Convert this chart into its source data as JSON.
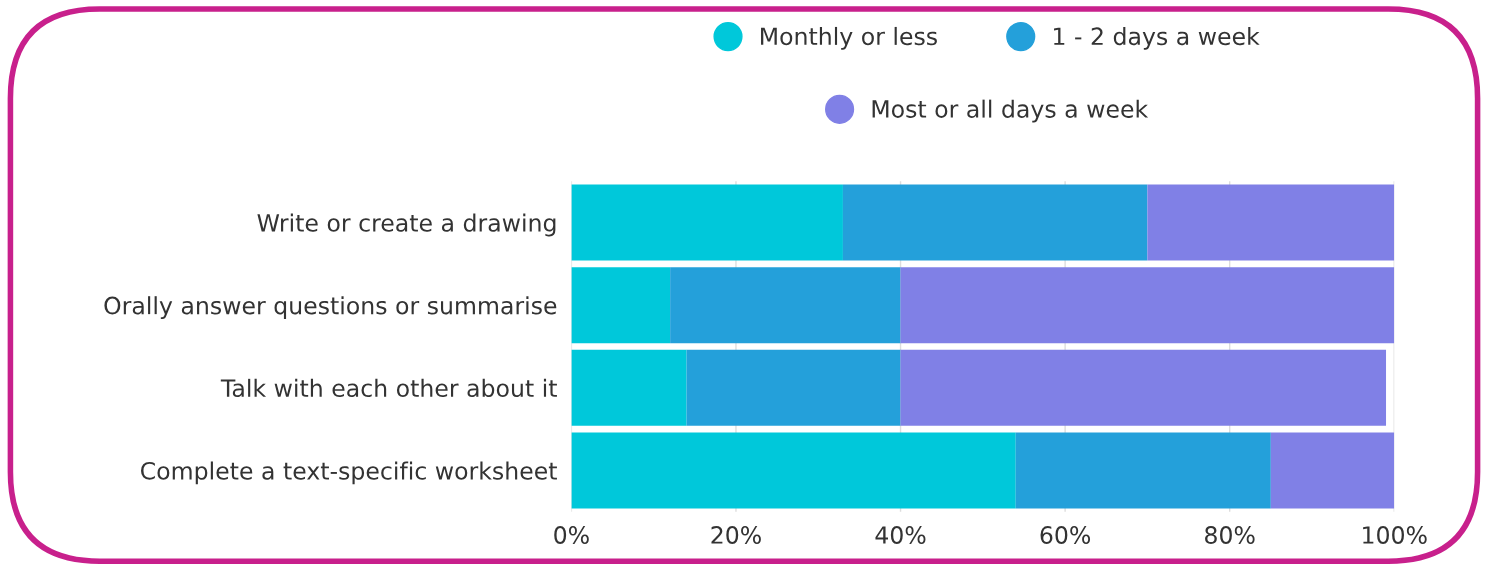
{
  "chart_data": {
    "type": "bar",
    "orientation": "horizontal",
    "stacked": true,
    "categories": [
      "Write or create a drawing",
      "Orally answer questions or summarise",
      "Talk with each other about it",
      "Complete a text-specific worksheet"
    ],
    "series": [
      {
        "name": "Monthly or less",
        "color": "#00c8da",
        "values": [
          33,
          12,
          14,
          54
        ]
      },
      {
        "name": "1 - 2 days a week",
        "color": "#24a0da",
        "values": [
          37,
          28,
          26,
          31
        ]
      },
      {
        "name": "Most or all days a week",
        "color": "#8080e6",
        "values": [
          30,
          60,
          59,
          15
        ]
      }
    ],
    "xlim": [
      0,
      100
    ],
    "xticks": [
      {
        "value": 0,
        "label": "0%"
      },
      {
        "value": 20,
        "label": "20%"
      },
      {
        "value": 40,
        "label": "40%"
      },
      {
        "value": 60,
        "label": "60%"
      },
      {
        "value": 80,
        "label": "80%"
      },
      {
        "value": 100,
        "label": "100%"
      }
    ],
    "grid": "x",
    "legend": "top",
    "marker": "circle"
  }
}
